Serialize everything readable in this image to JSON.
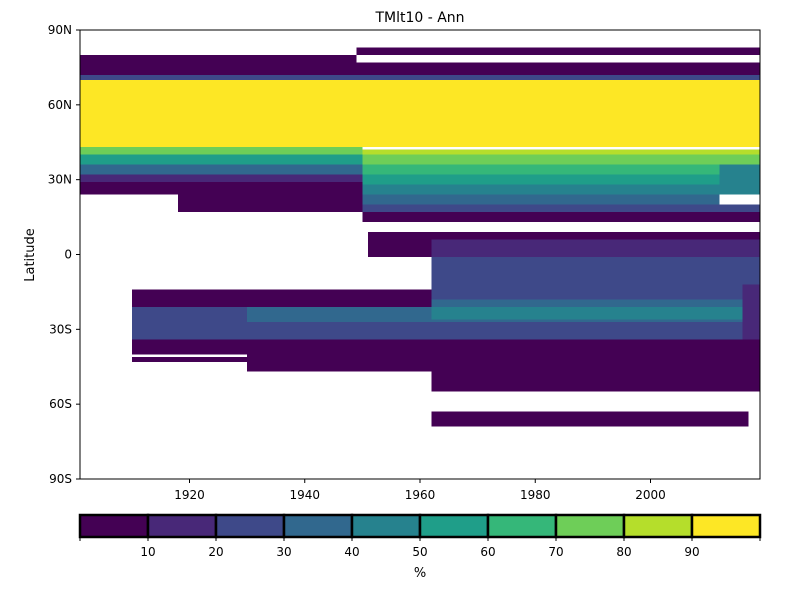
{
  "chart_data": {
    "type": "heatmap",
    "title": "TMlt10 - Ann",
    "xlabel": "",
    "ylabel": "Latitude",
    "xlim": [
      1901,
      2019
    ],
    "ylim": [
      -90,
      90
    ],
    "x_ticks": [
      1920,
      1940,
      1960,
      1980,
      2000
    ],
    "y_ticks": [
      {
        "value": 90,
        "label": "90N"
      },
      {
        "value": 60,
        "label": "60N"
      },
      {
        "value": 30,
        "label": "30N"
      },
      {
        "value": 0,
        "label": "0"
      },
      {
        "value": -30,
        "label": "30S"
      },
      {
        "value": -60,
        "label": "60S"
      },
      {
        "value": -90,
        "label": "90S"
      }
    ],
    "grid": false,
    "missing_values": "blank (white)",
    "colorbar": {
      "orientation": "horizontal",
      "placement": "bottom",
      "label": "%",
      "bounds": [
        0,
        10,
        20,
        30,
        40,
        50,
        60,
        70,
        80,
        90,
        100
      ],
      "tick_labels": [
        "10",
        "20",
        "30",
        "40",
        "50",
        "60",
        "70",
        "80",
        "90"
      ],
      "colors": [
        "#440154",
        "#482878",
        "#3e4989",
        "#31688e",
        "#26828e",
        "#1f9e89",
        "#35b779",
        "#6ece58",
        "#b5de2b",
        "#fde725"
      ]
    },
    "cells_note": "Each cell: x0-x1 years, y0-y1 latitude (deg), value = % category midpoint",
    "cells": [
      {
        "x0": 1901,
        "x1": 1949,
        "y0": 77,
        "y1": 80,
        "value": 5
      },
      {
        "x0": 1949,
        "x1": 2019,
        "y0": 80,
        "y1": 83,
        "value": 5
      },
      {
        "x0": 1901,
        "x1": 2019,
        "y0": 72,
        "y1": 77,
        "value": 5
      },
      {
        "x0": 1901,
        "x1": 2019,
        "y0": 70,
        "y1": 72,
        "value": 25
      },
      {
        "x0": 1901,
        "x1": 2019,
        "y0": 43,
        "y1": 70,
        "value": 95
      },
      {
        "x0": 1901,
        "x1": 1950,
        "y0": 40,
        "y1": 43,
        "value": 75
      },
      {
        "x0": 1950,
        "x1": 2019,
        "y0": 40,
        "y1": 42,
        "value": 85
      },
      {
        "x0": 1901,
        "x1": 1950,
        "y0": 36,
        "y1": 40,
        "value": 55
      },
      {
        "x0": 1901,
        "x1": 1950,
        "y0": 32,
        "y1": 36,
        "value": 35
      },
      {
        "x0": 1901,
        "x1": 1950,
        "y0": 29,
        "y1": 32,
        "value": 15
      },
      {
        "x0": 1950,
        "x1": 2019,
        "y0": 36,
        "y1": 40,
        "value": 75
      },
      {
        "x0": 1950,
        "x1": 2012,
        "y0": 32,
        "y1": 36,
        "value": 65
      },
      {
        "x0": 1950,
        "x1": 2012,
        "y0": 28,
        "y1": 32,
        "value": 55
      },
      {
        "x0": 1950,
        "x1": 2012,
        "y0": 24,
        "y1": 28,
        "value": 45
      },
      {
        "x0": 1950,
        "x1": 2012,
        "y0": 20,
        "y1": 24,
        "value": 35
      },
      {
        "x0": 1950,
        "x1": 2019,
        "y0": 17,
        "y1": 20,
        "value": 25
      },
      {
        "x0": 2012,
        "x1": 2019,
        "y0": 24,
        "y1": 36,
        "value": 45
      },
      {
        "x0": 1901,
        "x1": 1950,
        "y0": 24,
        "y1": 29,
        "value": 5
      },
      {
        "x0": 1918,
        "x1": 1950,
        "y0": 17,
        "y1": 24,
        "value": 5
      },
      {
        "x0": 1950,
        "x1": 2019,
        "y0": 13,
        "y1": 17,
        "value": 5
      },
      {
        "x0": 1951,
        "x1": 2019,
        "y0": 6,
        "y1": 9,
        "value": 5
      },
      {
        "x0": 1951,
        "x1": 1962,
        "y0": -1,
        "y1": 6,
        "value": 5
      },
      {
        "x0": 1962,
        "x1": 2019,
        "y0": -1,
        "y1": 6,
        "value": 15
      },
      {
        "x0": 1962,
        "x1": 2019,
        "y0": -12,
        "y1": -1,
        "value": 25
      },
      {
        "x0": 1910,
        "x1": 1962,
        "y0": -14,
        "y1": -21,
        "value": 5
      },
      {
        "x0": 1910,
        "x1": 1930,
        "y0": -21,
        "y1": -27,
        "value": 25
      },
      {
        "x0": 1930,
        "x1": 1962,
        "y0": -21,
        "y1": -27,
        "value": 35
      },
      {
        "x0": 1962,
        "x1": 2016,
        "y0": -12,
        "y1": -18,
        "value": 25
      },
      {
        "x0": 1962,
        "x1": 2016,
        "y0": -18,
        "y1": -21,
        "value": 35
      },
      {
        "x0": 1962,
        "x1": 2016,
        "y0": -21,
        "y1": -26,
        "value": 45
      },
      {
        "x0": 1962,
        "x1": 2016,
        "y0": -26,
        "y1": -30,
        "value": 35
      },
      {
        "x0": 1910,
        "x1": 2016,
        "y0": -27,
        "y1": -34,
        "value": 25
      },
      {
        "x0": 2016,
        "x1": 2019,
        "y0": -12,
        "y1": -34,
        "value": 15
      },
      {
        "x0": 1910,
        "x1": 1962,
        "y0": -34,
        "y1": -40,
        "value": 5
      },
      {
        "x0": 1910,
        "x1": 1930,
        "y0": -41,
        "y1": -43,
        "value": 5
      },
      {
        "x0": 1930,
        "x1": 1962,
        "y0": -40,
        "y1": -47,
        "value": 5
      },
      {
        "x0": 1962,
        "x1": 2019,
        "y0": -34,
        "y1": -55,
        "value": 5
      },
      {
        "x0": 1962,
        "x1": 2017,
        "y0": -63,
        "y1": -69,
        "value": 5
      }
    ]
  }
}
